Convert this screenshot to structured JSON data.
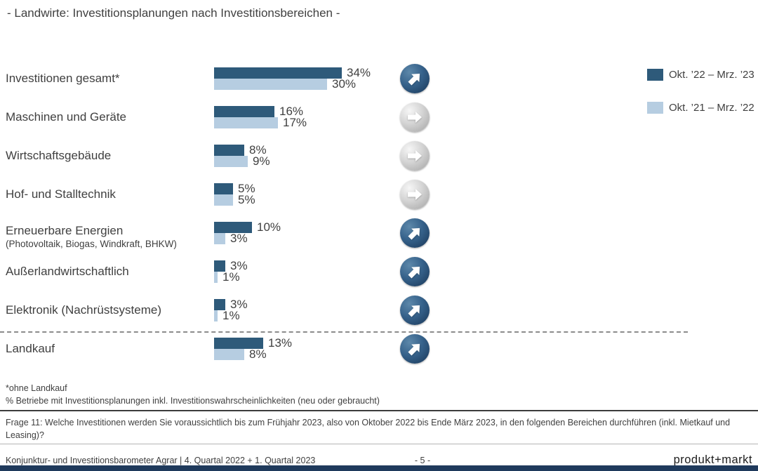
{
  "page_title": "- Landwirte: Investitionsplanungen nach Investitionsbereichen -",
  "legend": {
    "items": [
      {
        "label": "Okt. ’22 – Mrz. ’23",
        "color": "#2E5A7A"
      },
      {
        "label": "Okt. ’21 – Mrz. ’22",
        "color": "#B6CDE1"
      }
    ]
  },
  "rows": [
    {
      "label": "Investitionen gesamt*",
      "sublabel": "",
      "values": [
        34,
        30
      ],
      "display": [
        "34%",
        "30%"
      ],
      "trend": "up"
    },
    {
      "label": "Maschinen und Geräte",
      "sublabel": "",
      "values": [
        16,
        17
      ],
      "display": [
        "16%",
        "17%"
      ],
      "trend": "right"
    },
    {
      "label": "Wirtschaftsgebäude",
      "sublabel": "",
      "values": [
        8,
        9
      ],
      "display": [
        "8%",
        "9%"
      ],
      "trend": "right"
    },
    {
      "label": "Hof- und Stalltechnik",
      "sublabel": "",
      "values": [
        5,
        5
      ],
      "display": [
        "5%",
        "5%"
      ],
      "trend": "right"
    },
    {
      "label": "Erneuerbare Energien",
      "sublabel": "(Photovoltaik, Biogas, Windkraft, BHKW)",
      "values": [
        10,
        3
      ],
      "display": [
        "10%",
        "3%"
      ],
      "trend": "up"
    },
    {
      "label": "Außerlandwirtschaftlich",
      "sublabel": "",
      "values": [
        3,
        1
      ],
      "display": [
        "3%",
        "1%"
      ],
      "trend": "up"
    },
    {
      "label": "Elektronik (Nachrüstsysteme)",
      "sublabel": "",
      "values": [
        3,
        1
      ],
      "display": [
        "3%",
        "1%"
      ],
      "trend": "up"
    },
    {
      "label": "Landkauf",
      "sublabel": "",
      "values": [
        13,
        8
      ],
      "display": [
        "13%",
        "8%"
      ],
      "trend": "up"
    }
  ],
  "chart_data": {
    "type": "bar",
    "orientation": "horizontal",
    "title": "- Landwirte: Investitionsplanungen nach Investitionsbereichen -",
    "unit": "%",
    "value_labels": true,
    "xlim": [
      0,
      50
    ],
    "categories": [
      "Investitionen gesamt*",
      "Maschinen und Geräte",
      "Wirtschaftsgebäude",
      "Hof- und Stalltechnik",
      "Erneuerbare Energien (Photovoltaik, Biogas, Windkraft, BHKW)",
      "Außerlandwirtschaftlich",
      "Elektronik (Nachrüstsysteme)",
      "Landkauf"
    ],
    "series": [
      {
        "name": "Okt. ’22 – Mrz. ’23",
        "color": "#2E5A7A",
        "values": [
          34,
          16,
          8,
          5,
          10,
          3,
          3,
          13
        ]
      },
      {
        "name": "Okt. ’21 – Mrz. ’22",
        "color": "#B6CDE1",
        "values": [
          30,
          17,
          9,
          5,
          3,
          1,
          1,
          8
        ]
      }
    ],
    "trend_indicators": [
      "up",
      "right",
      "right",
      "right",
      "up",
      "up",
      "up",
      "up"
    ],
    "legend_position": "top-right",
    "grid": false,
    "separator_before_category": "Landkauf"
  },
  "footnotes": {
    "line1": "*ohne Landkauf",
    "line2": "% Betriebe mit Investitionsplanungen inkl. Investitionswahrscheinlichkeiten (neu oder gebraucht)"
  },
  "question": "Frage 11: Welche Investitionen werden Sie voraussichtlich bis zum Frühjahr 2023, also von Oktober 2022 bis Ende März 2023, in den folgenden Bereichen durchführen (inkl. Mietkauf und Leasing)?",
  "footer": {
    "source": "Konjunktur- und Investitionsbarometer Agrar | 4. Quartal 2022 + 1. Quartal 2023",
    "page_number": "- 5 -",
    "brand": "produkt+markt"
  },
  "colors": {
    "series_current": "#2E5A7A",
    "series_previous": "#B6CDE1",
    "footer_bar": "#1F3A5C",
    "text": "#404040"
  }
}
